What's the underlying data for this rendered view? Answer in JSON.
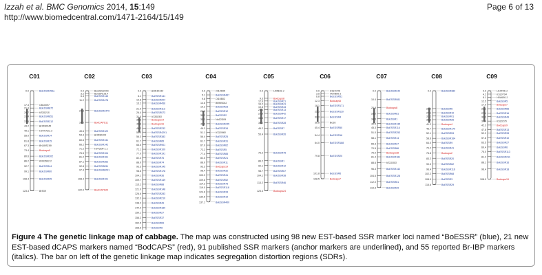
{
  "header": {
    "journal": "Izzah et al. BMC Genomics",
    "year_issue": " 2014, ",
    "volume": "15",
    "article": ":149",
    "url": "http://www.biomedcentral.com/1471-2164/15/149",
    "page": "Page 6 of 13"
  },
  "figure": {
    "caption_title": "Figure 4 The genetic linkage map of cabbage.",
    "caption_text": " The map was constructed using 98 new EST-based SSR marker loci named “BoESSR” (blue), 21 new EST-based dCAPS markers named “BodCAPS” (red), 91 published SSR markers (anchor markers are underlined), and 55 reported Br-IBP markers (italics). The bar on left of the genetic linkage map indicates segregation distortion regions (SDRs).",
    "colors": {
      "boessr": "#1f3d99",
      "bodcaps": "#d42020",
      "other": "#333333",
      "sdr": "#444444"
    },
    "chromosomes": [
      {
        "name": "C01",
        "positions": [
          "0.0",
          "17.3",
          "21.3",
          "26.7",
          "31.4",
          "37.6",
          "43.2",
          "49.1",
          "55.0",
          "61.8",
          "67.3",
          "73.4",
          "80.6",
          "86.2",
          "92.7",
          "99.1",
          "108.4",
          "123.3"
        ],
        "markers": [
          "BoESSR453a",
          "CB10097",
          "BoESSR872",
          "KS50215",
          "BoESSR851",
          "BoESSR312",
          "BrID90045",
          "H07H7G1.3",
          "BoESSR14",
          "BoESSR15",
          "BrGMS199",
          "Bodcaps9",
          "BoESSR302",
          "KR03592.2",
          "BoESSR44",
          "BoESSR60",
          "BoESSR35",
          "Br539"
        ]
      },
      {
        "name": "C02",
        "positions": [
          "0.0",
          "3.2",
          "6.4",
          "11.2",
          "24.3",
          "39.0",
          "49.6",
          "54.3",
          "60.6",
          "66.2",
          "71.2",
          "76.5",
          "81.2",
          "87.1",
          "92.8",
          "97.3",
          "108.4",
          "122.0"
        ],
        "markers": [
          "BoGMS2240",
          "BoSSR1014",
          "BoESSR143",
          "BoESSR478",
          "BoESSR3470",
          "BodCAPS11",
          "BoESSR122",
          "BrID90403",
          "BoESSR131",
          "BoESSR142",
          "H07G06-1.1",
          "BoESSR104",
          "BoESSR161",
          "BoESSR362",
          "BoESSR831",
          "BoESSR8291",
          "BoESSR101",
          "BodCAPS20"
        ]
      },
      {
        "name": "C03",
        "positions": [
          "0.0",
          "6.1",
          "10.8",
          "15.2",
          "21.9",
          "26.4",
          "31.5",
          "35.6",
          "40.8",
          "46.2",
          "51.0",
          "56.3",
          "61.7",
          "66.5",
          "72.1",
          "77.0",
          "82.4",
          "88.0",
          "93.3",
          "98.6",
          "104.1",
          "109.7",
          "115.2",
          "121.0",
          "126.6",
          "132.3",
          "138.2",
          "144.0",
          "150.1",
          "156.2",
          "162.5",
          "168.6",
          "175.1",
          "182.2"
        ],
        "markers": [
          "BrID10133",
          "BoESSR141",
          "BoESSR204",
          "BoESSR456",
          "BoESSR113",
          "BoESSR073",
          "KS50283",
          "Bodcaps14",
          "Bodcaps16",
          "BoESSR232",
          "BoESSR4291",
          "BoESSR383",
          "BoESSR85",
          "BoESSR901",
          "BoESSR109",
          "BoESSR191",
          "BoESSR76",
          "BoESSR74",
          "BoESSR145",
          "BoESSR178",
          "BoESSR36",
          "BoESSR149",
          "BoESSR88",
          "BoESSR148",
          "BoESSR283",
          "BoESSR210",
          "BoESSR49",
          "BoESSR180",
          "BoESSR27",
          "BoESSR37",
          "BoESSR69",
          "BoESSR8",
          "Bodcaps31",
          "Bodcaps22"
        ]
      },
      {
        "name": "C04",
        "positions": [
          "0.0",
          "5.1",
          "9.8",
          "14.6",
          "19.2",
          "24.9",
          "30.2",
          "35.0",
          "40.6",
          "46.3",
          "51.1",
          "56.4",
          "61.7",
          "67.0",
          "72.2",
          "77.4",
          "82.5",
          "88.0",
          "93.3",
          "98.4",
          "103.9",
          "109.6",
          "114.2",
          "119.0",
          "124.6",
          "130.5",
          "137.1"
        ],
        "markers": [
          "Ol12D05",
          "BoESSR467",
          "Ol10B02",
          "BRMS042",
          "BoESSR23",
          "BoESSR12",
          "BoESSR2",
          "Na12D09",
          "BoESSR245",
          "BoESSR34",
          "KS10960",
          "BoESSR25",
          "BoESSR31",
          "BoESSR62",
          "BoESSR5",
          "BoESSR85",
          "BoESSR21",
          "BoESSR11",
          "Bodcaps19",
          "BoESSR32",
          "BoESSR41",
          "BoESSR52",
          "BoESSR75",
          "BoESSR118",
          "BoESSR33",
          "BoESSR19",
          "BoESSR400"
        ]
      },
      {
        "name": "C05",
        "positions": [
          "0.0",
          "9.3",
          "12.6",
          "16.2",
          "19.8",
          "23.4",
          "27.9",
          "33.5",
          "39.2",
          "46.2",
          "53.4",
          "76.2",
          "86.2",
          "92.1",
          "98.7",
          "104.1",
          "113.2",
          "123.4"
        ],
        "markers": [
          "H05E11-1",
          "Bodcaps8",
          "BoESSR21",
          "BoESSR41",
          "BoESSR43",
          "BoESSR13",
          "BoESSR42",
          "BoESSR17",
          "BoESSR28",
          "BoESSR7",
          "BoESSR26",
          "BoESSR75",
          "BoESSR1",
          "BoESSR12",
          "BoESSR67",
          "BoESSR38",
          "BoESSR46",
          "Bodcaps24"
        ]
      },
      {
        "name": "C06",
        "positions": [
          "0.0",
          "3.5",
          "6.8",
          "12.3",
          "18.1",
          "25.5",
          "32.3",
          "38.8",
          "45.4",
          "54.4",
          "64.0",
          "79.8",
          "101.8",
          "108.5"
        ],
        "markers": [
          "KS10736",
          "H07B06-1",
          "BoESSR51",
          "Bodcaps5",
          "BoESSR171",
          "BoESSR110",
          "BoESSR4",
          "Bo16",
          "BoESSR50",
          "BoESSR16",
          "BoESSR188",
          "BoESSR20",
          "BoESSR6",
          "Bodcaps7"
        ]
      },
      {
        "name": "C07",
        "positions": [
          "0.0",
          "10.4",
          "20.8",
          "28.0",
          "34.5",
          "40.4",
          "45.3",
          "51.0",
          "58.1",
          "65.3",
          "70.5",
          "76.0",
          "81.4",
          "88.6",
          "96.3",
          "104.5",
          "112.0",
          "119.3"
        ],
        "markers": [
          "BoESSR244",
          "BoESSR081",
          "Bodcaps8",
          "BoESSR81",
          "BoESSR1",
          "BoESSR135",
          "BoESSR114",
          "BoESSR253",
          "BoESSR14",
          "BoESSR27",
          "BoESSR86",
          "Bodcaps38",
          "BoESSR181",
          "KS10303",
          "BoESSR142",
          "BoESSR128",
          "BoESSR61",
          "BoESSR29"
        ]
      },
      {
        "name": "C08",
        "positions": [
          "0.0",
          "22.0",
          "27.1",
          "31.2",
          "35.6",
          "41.2",
          "46.7",
          "52.1",
          "58.6",
          "64.0",
          "70.2",
          "76.8",
          "83.2",
          "90.3",
          "96.4",
          "102.2",
          "108.9",
          "115.6"
        ],
        "markers": [
          "BoESSR382",
          "BoESSR5",
          "BoESSR10",
          "BoESSR01",
          "BoESSR26",
          "Bodcaps4",
          "BoESSR170",
          "BoESSR53",
          "BoESSR164",
          "BoESSR9",
          "BoESSR41",
          "Bodcaps2",
          "BoESSR20",
          "BoESSR62",
          "BoESSR116",
          "BoESSR68",
          "BoESSR3",
          "BoESSR29"
        ]
      },
      {
        "name": "C09",
        "positions": [
          "0.0",
          "4.2",
          "8.1",
          "12.5",
          "17.0",
          "22.1",
          "27.4",
          "32.0",
          "37.4",
          "42.3",
          "47.8",
          "52.2",
          "57.8",
          "63.5",
          "69.4",
          "75.0",
          "81.2",
          "88.1",
          "96.4",
          "108.9"
        ],
        "markers": [
          "H10F06-1",
          "KS10704",
          "H04A06-1",
          "BoESSR5",
          "Bodcaps7",
          "BoESSR66",
          "BoESSR16",
          "BoESSR49",
          "KS10276",
          "Bodcaps9",
          "BoESSR13",
          "BoESSR33",
          "BoESSR10",
          "BoESSR27",
          "BoESSR6",
          "BoESSR113",
          "BoESSR211",
          "BoESSR16",
          "BoESSR18",
          "Bodcaps19"
        ]
      }
    ]
  }
}
